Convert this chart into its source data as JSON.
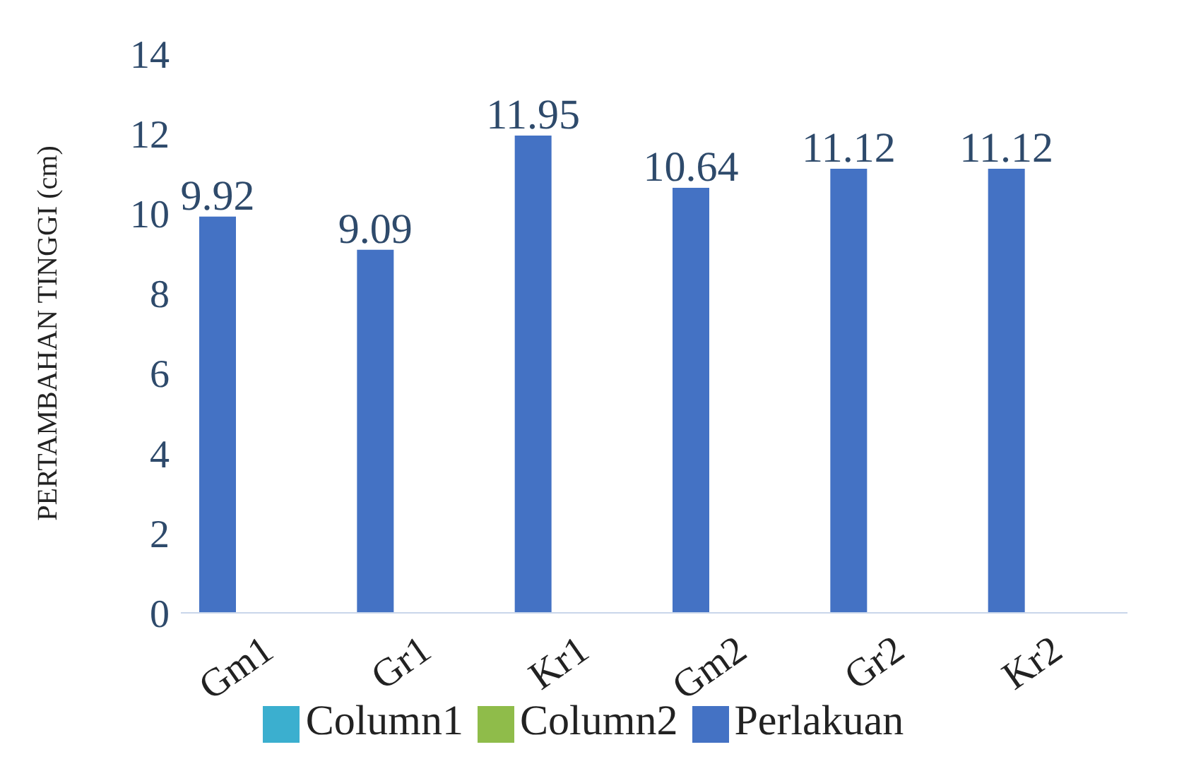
{
  "chart_data": {
    "type": "bar",
    "ylabel": "PERTAMBAHAN TINGGI (cm)",
    "categories": [
      "Gm1",
      "Gr1",
      "Kr1",
      "Gm2",
      "Gr2",
      "Kr2"
    ],
    "series": [
      {
        "name": "Perlakuan",
        "color": "#4472c4",
        "values": [
          9.92,
          9.09,
          11.95,
          10.64,
          11.12,
          11.12
        ]
      },
      {
        "name": "Column2",
        "color": "#8fbc4a",
        "values": [
          null,
          null,
          null,
          null,
          null,
          null
        ]
      },
      {
        "name": "Column1",
        "color": "#3bafcf",
        "values": [
          null,
          null,
          null,
          null,
          null,
          null
        ]
      }
    ],
    "ylim": [
      0,
      14
    ],
    "yticks": [
      0,
      2,
      4,
      6,
      8,
      10,
      12,
      14
    ],
    "grid": false,
    "legend": "bottom",
    "data_labels": true
  }
}
